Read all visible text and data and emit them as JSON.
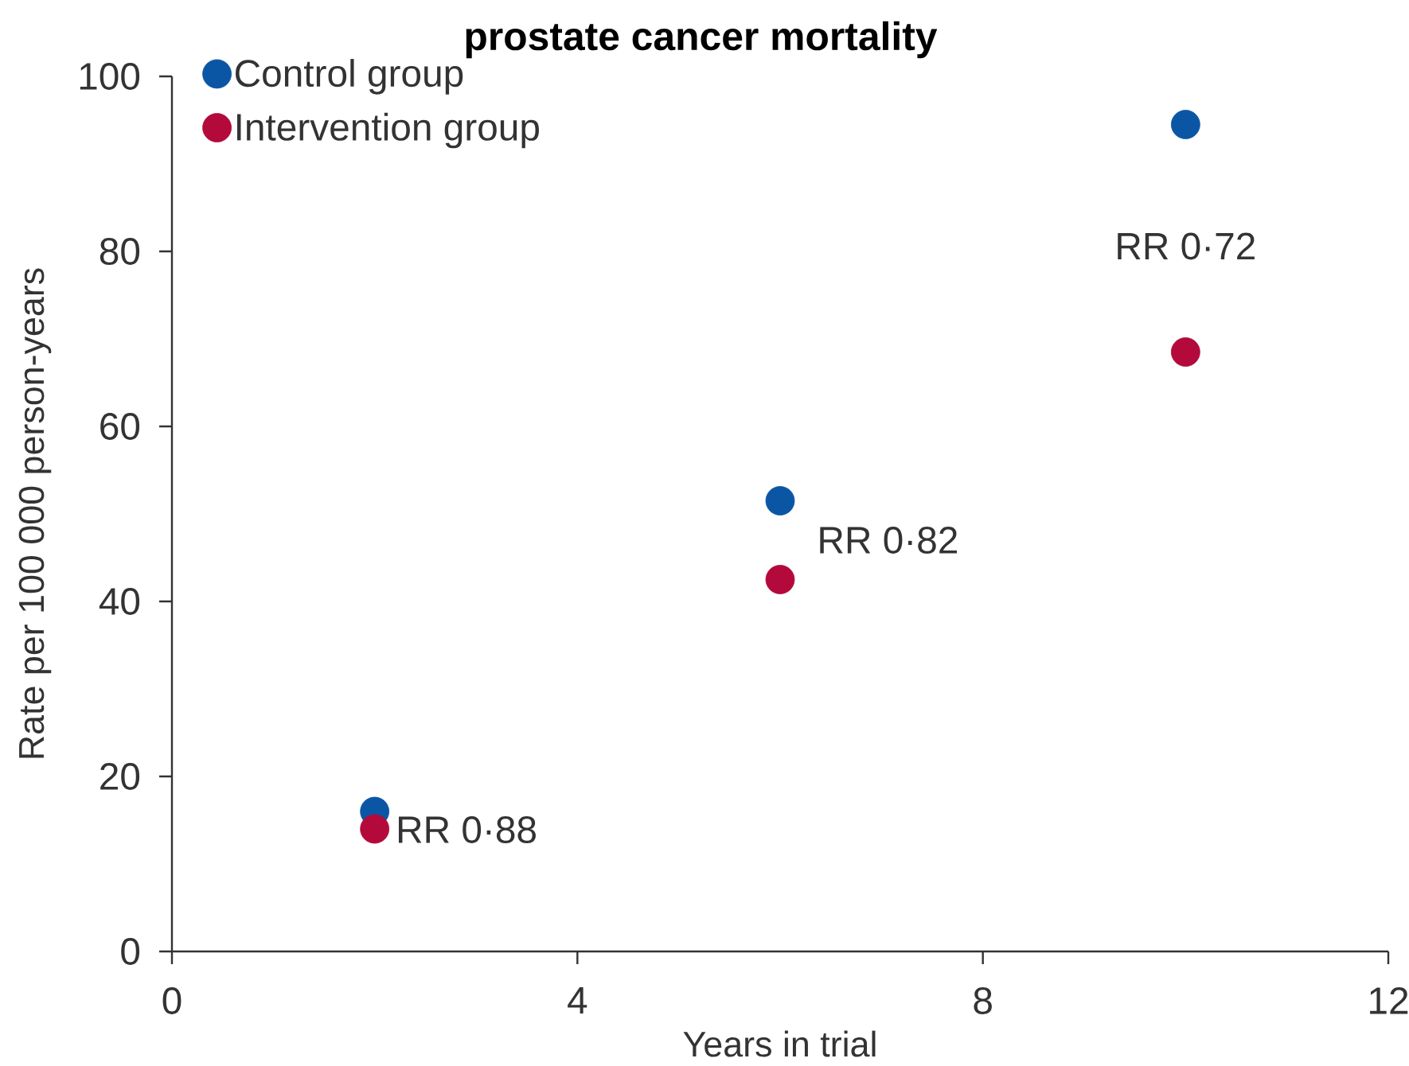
{
  "chart_data": {
    "type": "scatter",
    "title": "prostate cancer mortality",
    "xlabel": "Years in trial",
    "ylabel": "Rate per 100 000 person-years",
    "x": [
      2,
      6,
      10
    ],
    "series": [
      {
        "name": "Control group",
        "color": "#0b56a4",
        "values": [
          16,
          51.5,
          94.5
        ]
      },
      {
        "name": "Intervention group",
        "color": "#b30a3b",
        "values": [
          14,
          42.5,
          68.5
        ]
      }
    ],
    "xlim": [
      0,
      12
    ],
    "ylim": [
      0,
      100
    ],
    "xticks": [
      0,
      4,
      8,
      12
    ],
    "yticks": [
      0,
      20,
      40,
      60,
      80,
      100
    ],
    "legend": "top left",
    "marker": "circle",
    "annotations": [
      "RR 0·88",
      "RR 0·82",
      "RR 0·72"
    ]
  }
}
